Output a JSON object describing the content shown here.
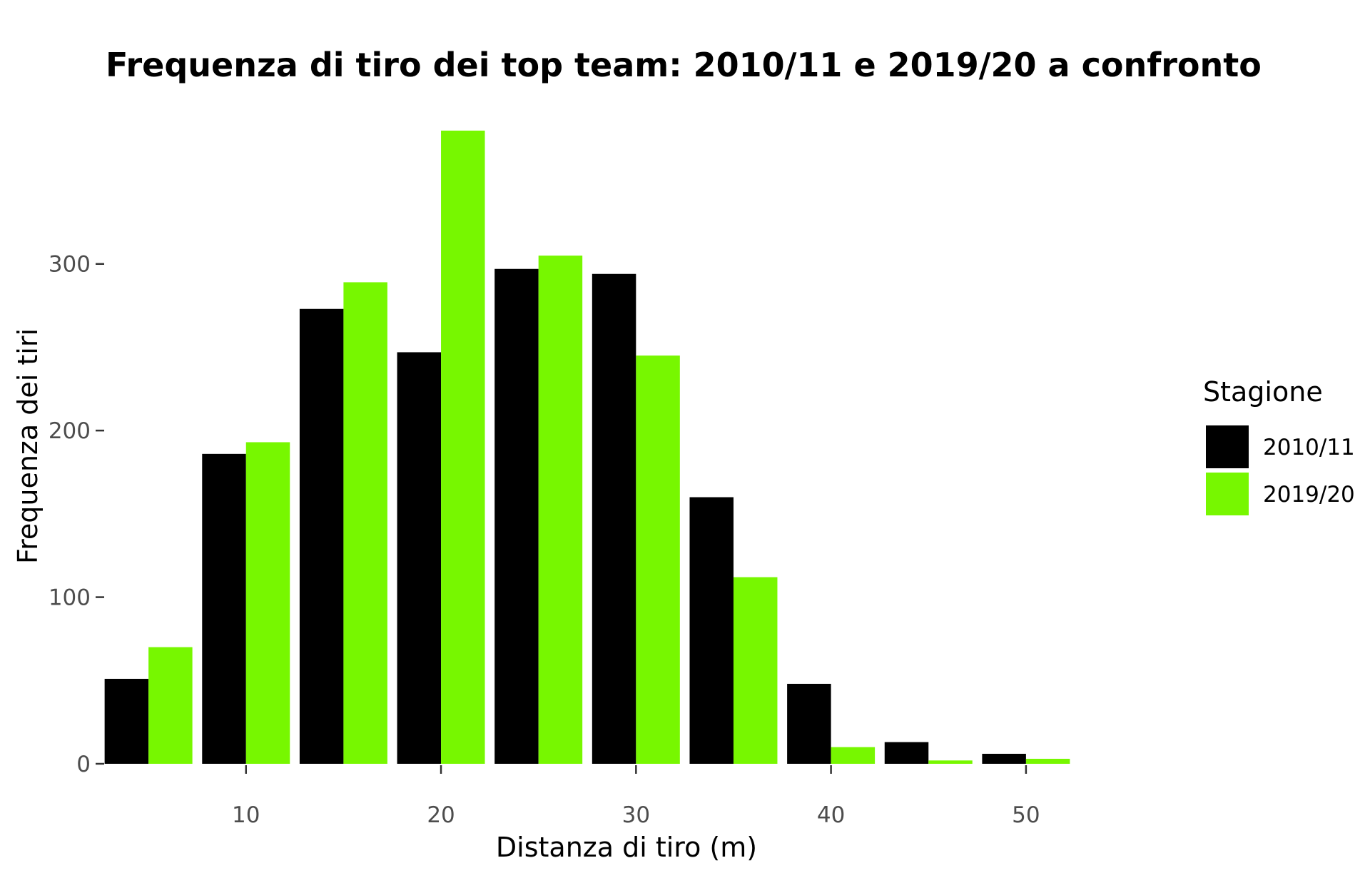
{
  "chart_data": {
    "type": "bar",
    "title": "Frequenza di tiro dei top team: 2010/11 e 2019/20 a confronto",
    "xlabel": "Distanza di tiro (m)",
    "ylabel": "Frequenza dei tiri",
    "x": [
      5,
      10,
      15,
      20,
      25,
      30,
      35,
      40,
      45,
      50
    ],
    "x_ticks": [
      10,
      20,
      30,
      40,
      50
    ],
    "y_ticks": [
      0,
      100,
      200,
      300
    ],
    "xlim": [
      2.8,
      55.2
    ],
    "ylim": [
      0,
      380
    ],
    "grid": false,
    "legend_title": "Stagione",
    "legend_position": "right",
    "series": [
      {
        "name": "2010/11",
        "color": "#000000",
        "values": [
          51,
          186,
          273,
          247,
          297,
          294,
          160,
          48,
          13,
          6
        ]
      },
      {
        "name": "2019/20",
        "color": "#77f700",
        "values": [
          70,
          193,
          289,
          380,
          305,
          245,
          112,
          10,
          2,
          3
        ]
      }
    ]
  }
}
